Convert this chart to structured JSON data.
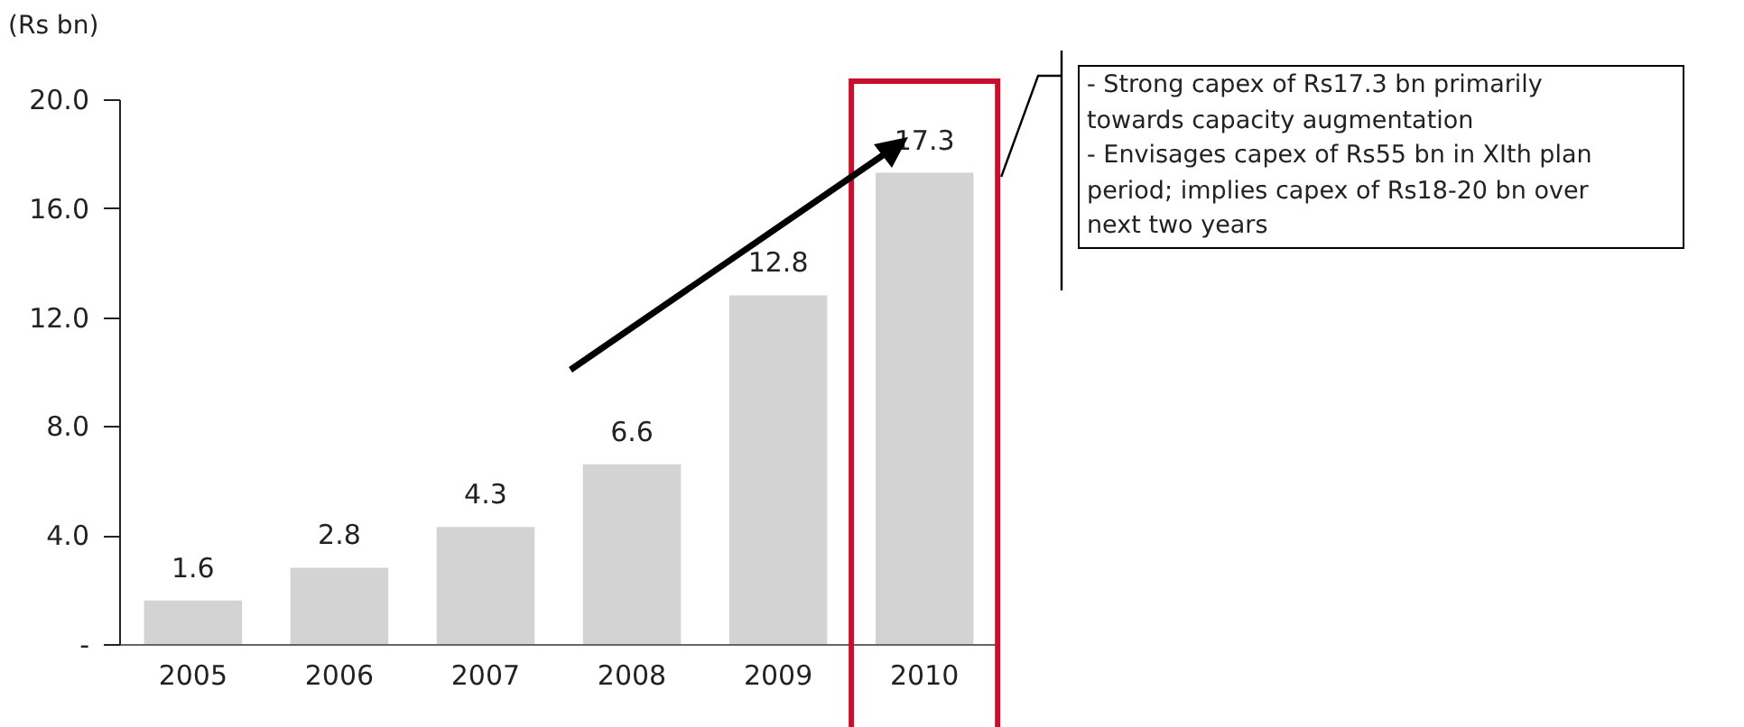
{
  "chart_data": {
    "type": "bar",
    "ylabel": "(Rs bn)",
    "categories": [
      "2005",
      "2006",
      "2007",
      "2008",
      "2009",
      "2010"
    ],
    "values": [
      1.6,
      2.8,
      4.3,
      6.6,
      12.8,
      17.3
    ],
    "color": "#d3d3d3",
    "ylim": [
      0,
      20
    ],
    "yticks": [
      {
        "value": 0,
        "label": "-"
      },
      {
        "value": 4,
        "label": "4.0"
      },
      {
        "value": 8,
        "label": "8.0"
      },
      {
        "value": 12,
        "label": "12.0"
      },
      {
        "value": 16,
        "label": "16.0"
      },
      {
        "value": 20,
        "label": "20.0"
      }
    ],
    "data_labels": true,
    "grid": false,
    "annotations": [
      "- Strong capex of Rs17.3 bn primarily towards capacity augmentation",
      "- Envisages capex of Rs55 bn in XIth plan period; implies capex of Rs18-20 bn over next two years"
    ]
  }
}
